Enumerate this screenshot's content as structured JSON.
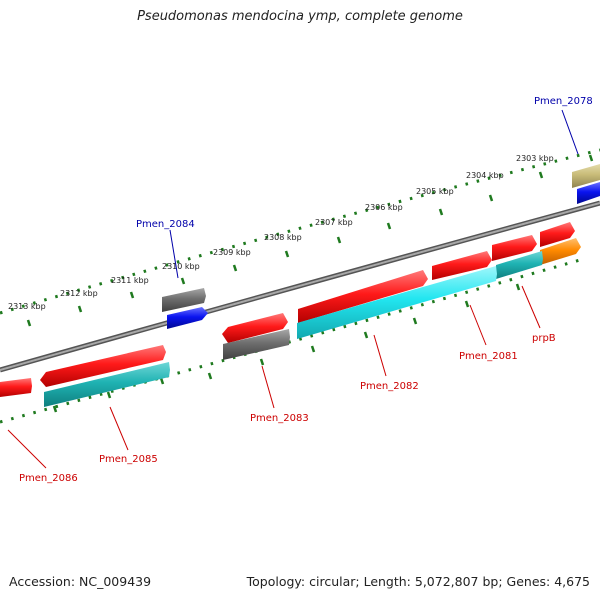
{
  "title": "Pseudomonas mendocina ymp, complete genome",
  "footer": {
    "accession": "Accession: NC_009439",
    "topology": "Topology: circular; Length: 5,072,807 bp; Genes: 4,675"
  },
  "colors": {
    "backbone": "#808080",
    "ruler": "#1f7a1f",
    "label_red": "#cc0000",
    "label_blue": "#0000aa",
    "cds_red": "#ff1a1a",
    "cds_cyan": "#22e6f0",
    "cds_teal": "#1fb3b3",
    "cds_gray": "#6e6e6e",
    "cds_blue": "#0a14f0",
    "cds_khaki": "#c8bb78",
    "cds_orange": "#ff8a00"
  },
  "ruler_labels": [
    "2313 kbp",
    "2312 kbp",
    "2311 kbp",
    "2310 kbp",
    "2309 kbp",
    "2308 kbp",
    "2307 kbp",
    "2306 kbp",
    "2305 kbp",
    "2304 kbp",
    "2303 kbp"
  ],
  "gene_labels": {
    "pmen_2078": "Pmen_2078",
    "pmen_2084": "Pmen_2084",
    "pmen_2081": "Pmen_2081",
    "prpb": "prpB",
    "pmen_2082": "Pmen_2082",
    "pmen_2083": "Pmen_2083",
    "pmen_2085": "Pmen_2085",
    "pmen_2086": "Pmen_2086"
  }
}
